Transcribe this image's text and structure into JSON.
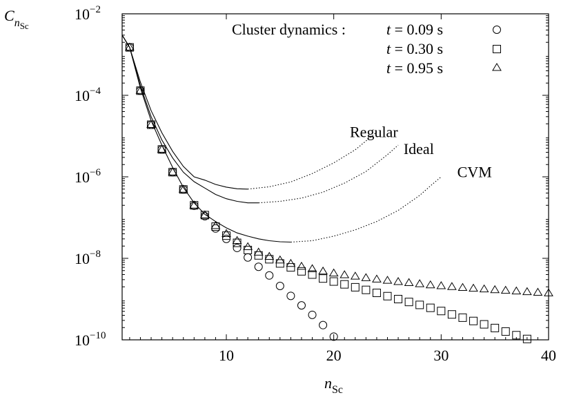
{
  "chart_data": {
    "type": "scatter",
    "ylabel": "C",
    "ylabel_sub": "Sc",
    "ylabel_sub_prefix": "n",
    "xlabel": "n",
    "xlabel_sub": "Sc",
    "xlim": [
      0.3,
      40
    ],
    "ylim": [
      1e-10,
      0.01
    ],
    "yscale": "log",
    "grid": false,
    "x_ticks": [
      {
        "value": 10,
        "label": "10"
      },
      {
        "value": 20,
        "label": "20"
      },
      {
        "value": 30,
        "label": "30"
      },
      {
        "value": 40,
        "label": "40"
      }
    ],
    "y_ticks": [
      {
        "exp": -10,
        "label_base": "10",
        "label_exp": "−10"
      },
      {
        "exp": -8,
        "label_base": "10",
        "label_exp": "−8"
      },
      {
        "exp": -6,
        "label_base": "10",
        "label_exp": "−6"
      },
      {
        "exp": -4,
        "label_base": "10",
        "label_exp": "−4"
      },
      {
        "exp": -2,
        "label_base": "10",
        "label_exp": "−2"
      }
    ],
    "legend": {
      "placement": "top-right",
      "title": "Cluster dynamics :",
      "entries": [
        {
          "t": "t",
          "eq": " = 0.09 s",
          "marker": "circle"
        },
        {
          "t": "t",
          "eq": " = 0.30 s",
          "marker": "square"
        },
        {
          "t": "t",
          "eq": " = 0.95 s",
          "marker": "triangle"
        }
      ]
    },
    "markers": [
      {
        "name": "t = 0.09 s",
        "marker": "circle",
        "x": [
          1,
          2,
          3,
          4,
          5,
          6,
          7,
          8,
          9,
          10,
          11,
          12,
          13,
          14,
          15,
          16,
          17,
          18,
          19,
          20
        ],
        "y": [
          0.0015,
          0.00013,
          1.9e-05,
          4.7e-06,
          1.3e-06,
          4.9e-07,
          1.95e-07,
          1.08e-07,
          5.4e-08,
          3e-08,
          1.8e-08,
          1.05e-08,
          6.2e-09,
          3.8e-09,
          2.1e-09,
          1.2e-09,
          7e-10,
          4.1e-10,
          2.3e-10,
          1.2e-10
        ]
      },
      {
        "name": "t = 0.30 s",
        "marker": "square",
        "x": [
          1,
          2,
          3,
          4,
          5,
          6,
          7,
          8,
          9,
          10,
          11,
          12,
          13,
          14,
          15,
          16,
          17,
          18,
          19,
          20,
          21,
          22,
          23,
          24,
          25,
          26,
          27,
          28,
          29,
          30,
          31,
          32,
          33,
          34,
          35,
          36,
          37,
          38
        ],
        "y": [
          0.0015,
          0.00013,
          1.9e-05,
          4.7e-06,
          1.3e-06,
          4.9e-07,
          2e-07,
          1.15e-07,
          6e-08,
          3.6e-08,
          2.4e-08,
          1.6e-08,
          1.18e-08,
          9.5e-09,
          7.5e-09,
          6e-09,
          4.8e-09,
          4e-09,
          3.2e-09,
          2.7e-09,
          2.3e-09,
          1.95e-09,
          1.68e-09,
          1.42e-09,
          1.18e-09,
          1e-09,
          8.5e-10,
          7.2e-10,
          6.1e-10,
          5.1e-10,
          4.2e-10,
          3.5e-10,
          2.9e-10,
          2.4e-10,
          1.95e-10,
          1.6e-10,
          1.3e-10,
          1.05e-10
        ]
      },
      {
        "name": "t = 0.95 s",
        "marker": "triangle",
        "x": [
          1,
          2,
          3,
          4,
          5,
          6,
          7,
          8,
          9,
          10,
          11,
          12,
          13,
          14,
          15,
          16,
          17,
          18,
          19,
          20,
          21,
          22,
          23,
          24,
          25,
          26,
          27,
          28,
          29,
          30,
          31,
          32,
          33,
          34,
          35,
          36,
          37,
          38,
          39,
          40
        ],
        "y": [
          0.0015,
          0.00013,
          1.9e-05,
          4.7e-06,
          1.3e-06,
          4.9e-07,
          2e-07,
          1.15e-07,
          6.3e-08,
          4e-08,
          2.7e-08,
          1.9e-08,
          1.4e-08,
          1.1e-08,
          9e-09,
          7.4e-09,
          6.3e-09,
          5.5e-09,
          4.8e-09,
          4.3e-09,
          3.9e-09,
          3.6e-09,
          3.3e-09,
          3.05e-09,
          2.85e-09,
          2.65e-09,
          2.5e-09,
          2.35e-09,
          2.2e-09,
          2.1e-09,
          2e-09,
          1.9e-09,
          1.82e-09,
          1.75e-09,
          1.68e-09,
          1.62e-09,
          1.56e-09,
          1.5e-09,
          1.45e-09,
          1.4e-09
        ]
      }
    ],
    "curves": [
      {
        "label": "Regular",
        "solid": {
          "x": [
            0.3,
            1,
            2,
            3,
            4,
            5,
            6,
            7,
            8,
            9,
            10,
            11,
            12
          ],
          "y": [
            0.003,
            0.0015,
            0.00021,
            4.2e-05,
            1.2e-05,
            4.2e-06,
            1.8e-06,
            1e-06,
            8.3e-07,
            6.5e-07,
            5.6e-07,
            5.1e-07,
            5e-07
          ]
        },
        "dotted": {
          "x": [
            12,
            14,
            16,
            18,
            20,
            22,
            24
          ],
          "y": [
            5e-07,
            5.7e-07,
            7.5e-07,
            1.2e-06,
            2.2e-06,
            4.6e-06,
            1.25e-05
          ]
        }
      },
      {
        "label": "Ideal",
        "solid": {
          "x": [
            0.3,
            1,
            2,
            3,
            4,
            5,
            6,
            7,
            8,
            9,
            10,
            11,
            12,
            13
          ],
          "y": [
            0.003,
            0.0015,
            0.00017,
            3e-05,
            8e-06,
            2.9e-06,
            1.3e-06,
            7.6e-07,
            5.3e-07,
            3.7e-07,
            2.9e-07,
            2.5e-07,
            2.3e-07,
            2.3e-07
          ]
        },
        "dotted": {
          "x": [
            13,
            15,
            17,
            19,
            21,
            23,
            25,
            26
          ],
          "y": [
            2.3e-07,
            2.5e-07,
            3e-07,
            4.2e-07,
            7e-07,
            1.35e-06,
            3.5e-06,
            6e-06
          ]
        }
      },
      {
        "label": "CVM",
        "solid": {
          "x": [
            0.3,
            1,
            2,
            3,
            4,
            5,
            6,
            7,
            8,
            9,
            10,
            11,
            12,
            13,
            14,
            15,
            16
          ],
          "y": [
            0.003,
            0.0015,
            0.00015,
            2.4e-05,
            6e-06,
            1.7e-06,
            5.5e-07,
            2.3e-07,
            1.2e-07,
            8e-08,
            5.6e-08,
            4.2e-08,
            3.5e-08,
            3e-08,
            2.7e-08,
            2.55e-08,
            2.5e-08
          ]
        },
        "dotted": {
          "x": [
            16,
            18,
            20,
            22,
            24,
            26,
            28,
            29,
            30
          ],
          "y": [
            2.5e-08,
            2.7e-08,
            3.5e-08,
            5e-08,
            8e-08,
            1.5e-07,
            3.5e-07,
            6e-07,
            1e-06
          ]
        }
      }
    ],
    "annotations": [
      {
        "text": "Regular",
        "x": 21.5,
        "y": 1.3e-05
      },
      {
        "text": "Ideal",
        "x": 26.5,
        "y": 5e-06
      },
      {
        "text": "CVM",
        "x": 31.5,
        "y": 1.35e-06
      }
    ]
  }
}
